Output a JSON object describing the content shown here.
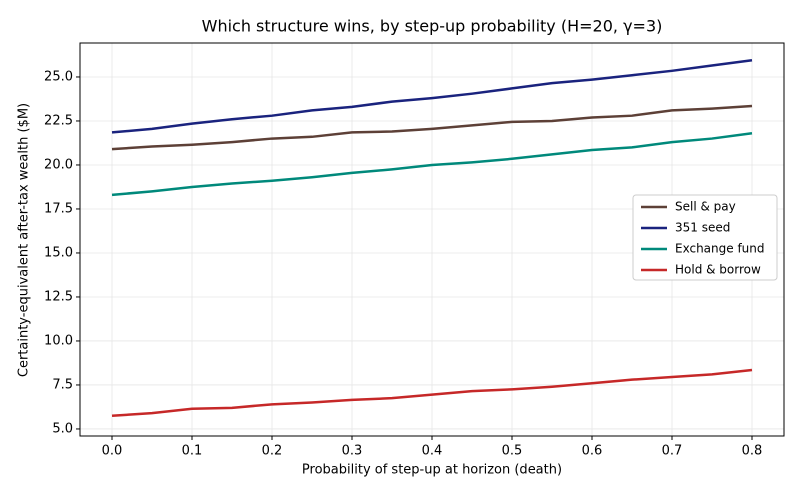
{
  "chart_data": {
    "type": "line",
    "title": "Which structure wins, by step-up probability (H=20, γ=3)",
    "x_label": "Probability of step-up at horizon (death)",
    "y_label": "Certainty-equivalent after-tax wealth ($M)",
    "x": [
      0,
      0.05,
      0.1,
      0.15,
      0.2,
      0.25,
      0.3,
      0.35,
      0.4,
      0.45,
      0.5,
      0.55,
      0.6,
      0.65,
      0.7,
      0.75,
      0.8
    ],
    "series": [
      {
        "name": "Sell & pay",
        "color": "#5d4037",
        "values": [
          20.9,
          21.05,
          21.15,
          21.3,
          21.5,
          21.6,
          21.85,
          21.9,
          22.05,
          22.25,
          22.45,
          22.5,
          22.7,
          22.8,
          23.1,
          23.2,
          23.35
        ]
      },
      {
        "name": "351 seed",
        "color": "#1a237e",
        "values": [
          21.85,
          22.05,
          22.35,
          22.6,
          22.8,
          23.1,
          23.3,
          23.6,
          23.8,
          24.05,
          24.35,
          24.65,
          24.85,
          25.1,
          25.35,
          25.65,
          25.95
        ]
      },
      {
        "name": "Exchange fund",
        "color": "#00897b",
        "values": [
          18.3,
          18.5,
          18.75,
          18.95,
          19.1,
          19.3,
          19.55,
          19.75,
          20.0,
          20.15,
          20.35,
          20.6,
          20.85,
          21.0,
          21.3,
          21.5,
          21.8
        ]
      },
      {
        "name": "Hold & borrow",
        "color": "#c62828",
        "values": [
          5.75,
          5.9,
          6.15,
          6.2,
          6.4,
          6.5,
          6.65,
          6.75,
          6.95,
          7.15,
          7.25,
          7.4,
          7.6,
          7.8,
          7.95,
          8.1,
          8.35
        ]
      }
    ],
    "xlim": [
      -0.04,
      0.84
    ],
    "ylim": [
      4.6,
      26.93
    ],
    "xticks": [
      {
        "value": 0,
        "label": "0.0"
      },
      0.1,
      0.2,
      0.3,
      0.4,
      0.5,
      0.6,
      0.7,
      0.8
    ],
    "yticks": [
      {
        "value": 5,
        "label": "5.0"
      },
      7.5,
      {
        "value": 10,
        "label": "10.0"
      },
      12.5,
      {
        "value": 15,
        "label": "15.0"
      },
      17.5,
      {
        "value": 20,
        "label": "20.0"
      },
      22.5,
      {
        "value": 25,
        "label": "25.0"
      }
    ],
    "grid": true,
    "legend": "right"
  }
}
